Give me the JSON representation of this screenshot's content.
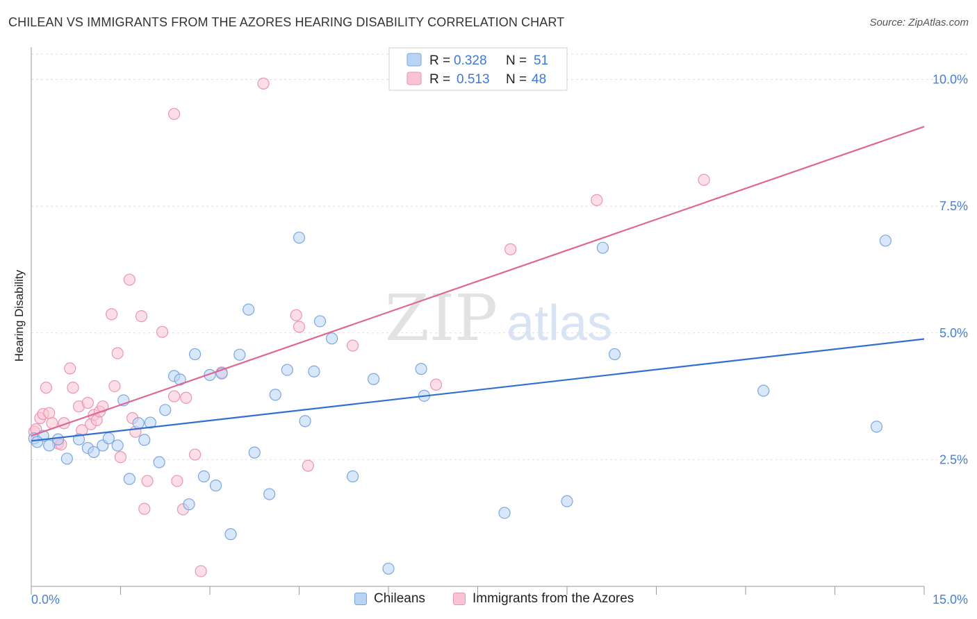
{
  "title": "CHILEAN VS IMMIGRANTS FROM THE AZORES HEARING DISABILITY CORRELATION CHART",
  "source": "Source: ZipAtlas.com",
  "watermark": {
    "zip": "ZIP",
    "atlas": "atlas"
  },
  "legend_top": [
    {
      "r_label": "R =",
      "r_value": "0.328",
      "n_label": "N =",
      "n_value": "51"
    },
    {
      "r_label": "R =",
      "r_value": "0.513",
      "n_label": "N =",
      "n_value": "48"
    }
  ],
  "legend_bottom": [
    "Chileans",
    "Immigrants from the Azores"
  ],
  "colors": {
    "blue_fill": "#b9d3f5",
    "blue_stroke": "#7aa6e0",
    "blue_line": "#2f6fd0",
    "pink_fill": "#f9c3d4",
    "pink_stroke": "#eb95b0",
    "pink_line": "#e06590",
    "tick_text": "#4a7fd0",
    "grid": "#dddddd"
  },
  "chart_data": {
    "type": "scatter",
    "ylabel": "Hearing Disability",
    "xlim": [
      0,
      15
    ],
    "ylim": [
      0,
      10.5
    ],
    "x_ticks": [
      "0.0%",
      "15.0%"
    ],
    "y_ticks": [
      {
        "value": 2.5,
        "label": "2.5%"
      },
      {
        "value": 5.0,
        "label": "5.0%"
      },
      {
        "value": 7.5,
        "label": "7.5%"
      },
      {
        "value": 10.0,
        "label": "10.0%"
      }
    ],
    "series": [
      {
        "name": "Chileans",
        "r": 0.328,
        "n": 51,
        "trend": {
          "x": [
            0,
            15
          ],
          "y": [
            2.87,
            4.88
          ]
        },
        "points": [
          [
            0.05,
            2.92
          ],
          [
            0.2,
            2.97
          ],
          [
            0.3,
            2.78
          ],
          [
            0.45,
            2.9
          ],
          [
            0.6,
            2.52
          ],
          [
            0.8,
            2.9
          ],
          [
            0.95,
            2.73
          ],
          [
            1.05,
            2.65
          ],
          [
            1.2,
            2.78
          ],
          [
            1.3,
            2.92
          ],
          [
            1.45,
            2.78
          ],
          [
            1.55,
            3.67
          ],
          [
            1.65,
            2.12
          ],
          [
            1.8,
            3.22
          ],
          [
            1.9,
            2.89
          ],
          [
            2.0,
            3.23
          ],
          [
            2.15,
            2.45
          ],
          [
            2.25,
            3.48
          ],
          [
            2.4,
            4.15
          ],
          [
            2.5,
            4.08
          ],
          [
            2.65,
            1.62
          ],
          [
            2.75,
            4.58
          ],
          [
            2.9,
            2.17
          ],
          [
            3.0,
            4.17
          ],
          [
            3.1,
            1.99
          ],
          [
            3.2,
            4.2
          ],
          [
            3.35,
            1.03
          ],
          [
            3.5,
            4.57
          ],
          [
            3.65,
            5.46
          ],
          [
            3.75,
            2.64
          ],
          [
            4.0,
            1.82
          ],
          [
            4.1,
            3.78
          ],
          [
            4.3,
            4.27
          ],
          [
            4.5,
            6.88
          ],
          [
            4.6,
            3.26
          ],
          [
            4.75,
            4.24
          ],
          [
            4.85,
            5.23
          ],
          [
            5.05,
            4.89
          ],
          [
            5.4,
            2.17
          ],
          [
            5.75,
            4.09
          ],
          [
            6.0,
            0.35
          ],
          [
            6.55,
            4.29
          ],
          [
            6.6,
            3.76
          ],
          [
            7.95,
            1.45
          ],
          [
            9.0,
            1.68
          ],
          [
            9.6,
            6.68
          ],
          [
            9.8,
            4.58
          ],
          [
            12.3,
            3.86
          ],
          [
            14.2,
            3.15
          ],
          [
            14.35,
            6.82
          ],
          [
            0.1,
            2.85
          ]
        ]
      },
      {
        "name": "Immigrants from the Azores",
        "r": 0.513,
        "n": 48,
        "trend": {
          "x": [
            0,
            15
          ],
          "y": [
            2.97,
            9.07
          ]
        },
        "points": [
          [
            0.05,
            3.05
          ],
          [
            0.15,
            3.32
          ],
          [
            0.2,
            3.4
          ],
          [
            0.25,
            3.92
          ],
          [
            0.3,
            3.42
          ],
          [
            0.35,
            3.22
          ],
          [
            0.45,
            2.82
          ],
          [
            0.5,
            2.8
          ],
          [
            0.55,
            3.22
          ],
          [
            0.65,
            4.3
          ],
          [
            0.7,
            3.92
          ],
          [
            0.8,
            3.55
          ],
          [
            0.85,
            3.08
          ],
          [
            0.95,
            3.62
          ],
          [
            1.0,
            3.2
          ],
          [
            1.05,
            3.38
          ],
          [
            1.1,
            3.28
          ],
          [
            1.15,
            3.45
          ],
          [
            1.2,
            3.55
          ],
          [
            1.35,
            5.37
          ],
          [
            1.4,
            3.95
          ],
          [
            1.45,
            4.6
          ],
          [
            1.5,
            2.55
          ],
          [
            1.65,
            6.05
          ],
          [
            1.7,
            3.32
          ],
          [
            1.75,
            3.05
          ],
          [
            1.85,
            5.33
          ],
          [
            1.9,
            1.53
          ],
          [
            1.95,
            2.08
          ],
          [
            2.2,
            5.02
          ],
          [
            2.4,
            3.75
          ],
          [
            2.45,
            2.08
          ],
          [
            2.55,
            1.52
          ],
          [
            2.6,
            3.72
          ],
          [
            2.4,
            9.32
          ],
          [
            2.75,
            2.6
          ],
          [
            2.85,
            0.3
          ],
          [
            3.2,
            4.22
          ],
          [
            3.9,
            9.92
          ],
          [
            4.45,
            5.35
          ],
          [
            4.5,
            5.12
          ],
          [
            4.65,
            2.38
          ],
          [
            5.4,
            4.75
          ],
          [
            6.8,
            3.98
          ],
          [
            8.05,
            6.65
          ],
          [
            9.5,
            7.62
          ],
          [
            11.3,
            8.02
          ],
          [
            0.08,
            3.1
          ]
        ]
      }
    ]
  }
}
